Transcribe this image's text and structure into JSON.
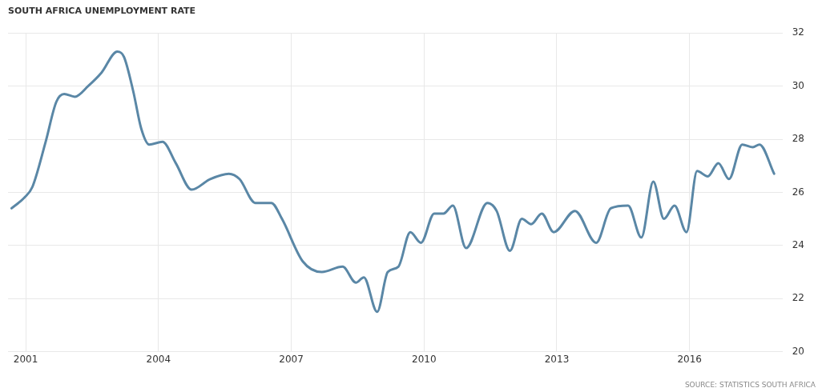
{
  "chart_data": {
    "type": "line",
    "title": "SOUTH AFRICA UNEMPLOYMENT RATE",
    "annotations": [
      "SOURCE: STATISTICS SOUTH AFRICA"
    ],
    "series": [
      {
        "color": "#5a87a6",
        "x": [
          2000.68,
          2000.97,
          2001.15,
          2001.45,
          2001.69,
          2001.87,
          2002.11,
          2002.41,
          2002.71,
          2003.07,
          2003.22,
          2003.43,
          2003.61,
          2003.79,
          2004.09,
          2004.39,
          2004.75,
          2005.17,
          2005.59,
          2005.83,
          2006.19,
          2006.55,
          2006.79,
          2007.26,
          2007.69,
          2008.16,
          2008.46,
          2008.64,
          2008.94,
          2009.18,
          2009.42,
          2009.69,
          2009.93,
          2010.23,
          2010.44,
          2010.65,
          2010.95,
          2011.43,
          2011.64,
          2011.94,
          2012.21,
          2012.42,
          2012.66,
          2012.93,
          2013.41,
          2013.89,
          2014.22,
          2014.61,
          2014.91,
          2015.18,
          2015.42,
          2015.66,
          2015.93,
          2016.17,
          2016.41,
          2016.65,
          2016.89,
          2017.19,
          2017.43,
          2017.58,
          2017.91
        ],
        "values": [
          25.4,
          25.8,
          26.2,
          27.9,
          29.4,
          29.7,
          29.6,
          30.0,
          30.5,
          31.3,
          31.1,
          29.8,
          28.4,
          27.8,
          27.9,
          27.1,
          26.1,
          26.5,
          26.7,
          26.5,
          25.6,
          25.6,
          25.0,
          23.4,
          23.0,
          23.2,
          22.6,
          22.8,
          21.5,
          23.0,
          23.2,
          24.5,
          24.1,
          25.2,
          25.2,
          25.5,
          23.9,
          25.6,
          25.3,
          23.8,
          25.0,
          24.8,
          25.2,
          24.5,
          25.3,
          24.1,
          25.4,
          25.5,
          24.3,
          26.4,
          25.0,
          25.5,
          24.5,
          26.8,
          26.6,
          27.1,
          26.5,
          27.8,
          27.7,
          27.8,
          26.7
        ]
      }
    ],
    "xlim": [
      2000.6,
      2018.1
    ],
    "xticks": [
      2001,
      2004,
      2007,
      2010,
      2013,
      2016
    ],
    "ylim": [
      20,
      32
    ],
    "yticks": [
      20,
      22,
      24,
      26,
      28,
      30,
      32
    ],
    "grid": true,
    "legend": false,
    "marker": "none",
    "line_style": "solid"
  }
}
